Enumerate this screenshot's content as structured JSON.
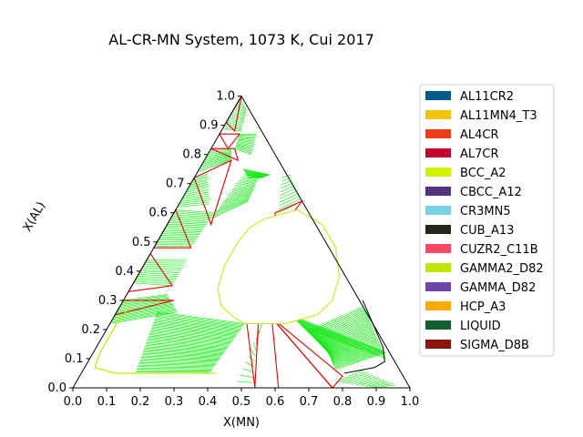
{
  "chart_data": {
    "type": "ternary",
    "title": "AL-CR-MN System, 1073 K, Cui 2017",
    "xlabel": "X(MN)",
    "ylabel": "X(AL)",
    "xlim": [
      0.0,
      1.0
    ],
    "ylim": [
      0.0,
      1.0
    ],
    "x_ticks": [
      "0.0",
      "0.1",
      "0.2",
      "0.3",
      "0.4",
      "0.5",
      "0.6",
      "0.7",
      "0.8",
      "0.9",
      "1.0"
    ],
    "y_ticks": [
      "0.0",
      "0.1",
      "0.2",
      "0.3",
      "0.4",
      "0.5",
      "0.6",
      "0.7",
      "0.8",
      "0.9",
      "1.0"
    ],
    "legend_position": "right",
    "legend": [
      {
        "name": "AL11CR2",
        "color": "#005a8c"
      },
      {
        "name": "AL11MN4_T3",
        "color": "#f5c400"
      },
      {
        "name": "AL4CR",
        "color": "#f03c14"
      },
      {
        "name": "AL7CR",
        "color": "#c8002d"
      },
      {
        "name": "BCC_A2",
        "color": "#d2f000"
      },
      {
        "name": "CBCC_A12",
        "color": "#55327d"
      },
      {
        "name": "CR3MN5",
        "color": "#78d2e6"
      },
      {
        "name": "CUB_A13",
        "color": "#1e2814"
      },
      {
        "name": "CUZR2_C11B",
        "color": "#ff4664"
      },
      {
        "name": "GAMMA2_D82",
        "color": "#bee600"
      },
      {
        "name": "GAMMA_D82",
        "color": "#6e46aa"
      },
      {
        "name": "HCP_A3",
        "color": "#ffaa00"
      },
      {
        "name": "LIQUID",
        "color": "#145f32"
      },
      {
        "name": "SIGMA_D8B",
        "color": "#8c140f"
      }
    ],
    "colors": {
      "tie_line": "#00e600",
      "boundary": "#e60000",
      "hull": "#000000",
      "bcc_edge": "#c8e600"
    },
    "three_phase_triangles": [
      [
        [
          0.0,
          1.0
        ],
        [
          0.0,
          0.91
        ],
        [
          0.04,
          0.88
        ]
      ],
      [
        [
          0.0,
          0.87
        ],
        [
          0.06,
          0.87
        ],
        [
          0.05,
          0.82
        ]
      ],
      [
        [
          0.0,
          0.82
        ],
        [
          0.07,
          0.82
        ],
        [
          0.1,
          0.78
        ]
      ],
      [
        [
          0.08,
          0.78
        ],
        [
          0.0,
          0.72
        ],
        [
          0.13,
          0.56
        ]
      ],
      [
        [
          0.0,
          0.61
        ],
        [
          0.11,
          0.48
        ],
        [
          0.0,
          0.48
        ]
      ],
      [
        [
          0.0,
          0.46
        ],
        [
          0.12,
          0.35
        ],
        [
          0.0,
          0.33
        ]
      ],
      [
        [
          0.0,
          0.3
        ],
        [
          0.15,
          0.3
        ],
        [
          0.0,
          0.25
        ]
      ],
      [
        [
          0.36,
          0.64
        ],
        [
          0.3,
          0.6
        ],
        [
          0.34,
          0.52
        ]
      ],
      [
        [
          0.4,
          0.23
        ],
        [
          0.44,
          0.22
        ],
        [
          0.54,
          0.0
        ]
      ],
      [
        [
          0.47,
          0.24
        ],
        [
          0.61,
          0.0
        ],
        [
          0.77,
          0.0
        ]
      ],
      [
        [
          0.47,
          0.24
        ],
        [
          0.77,
          0.0
        ],
        [
          0.78,
          0.04
        ]
      ]
    ]
  }
}
